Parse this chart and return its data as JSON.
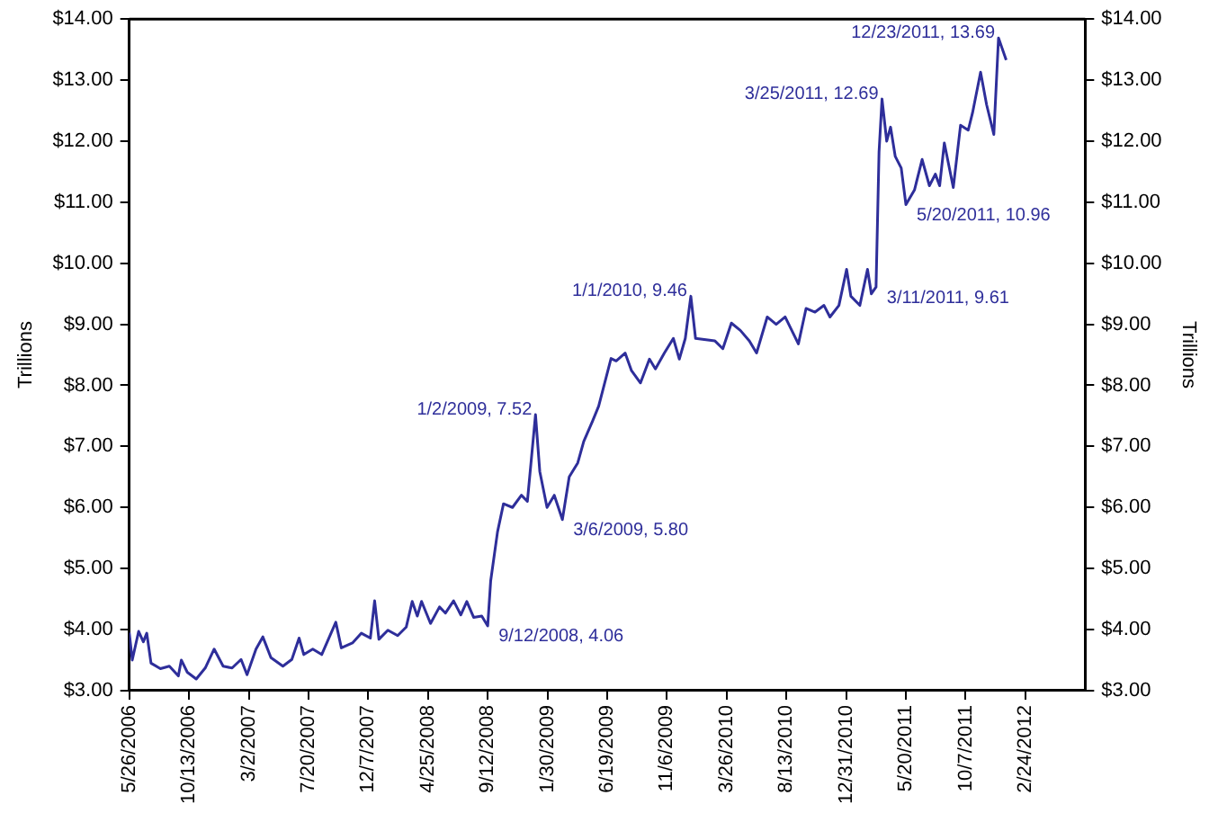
{
  "chart_data": {
    "type": "line",
    "ylabel": "Trillions",
    "y2label": "Trillions",
    "grid": false,
    "legend": false,
    "marker": "none",
    "line_style": "solid",
    "xlim": [
      "2006-05-26",
      "2012-07-13"
    ],
    "xticks": [
      {
        "value": "2006-05-26",
        "label": "5/26/2006"
      },
      {
        "value": "2006-10-13",
        "label": "10/13/2006"
      },
      {
        "value": "2007-03-02",
        "label": "3/2/2007"
      },
      {
        "value": "2007-07-20",
        "label": "7/20/2007"
      },
      {
        "value": "2007-12-07",
        "label": "12/7/2007"
      },
      {
        "value": "2008-04-25",
        "label": "4/25/2008"
      },
      {
        "value": "2008-09-12",
        "label": "9/12/2008"
      },
      {
        "value": "2009-01-30",
        "label": "1/30/2009"
      },
      {
        "value": "2009-06-19",
        "label": "6/19/2009"
      },
      {
        "value": "2009-11-06",
        "label": "11/6/2009"
      },
      {
        "value": "2010-03-26",
        "label": "3/26/2010"
      },
      {
        "value": "2010-08-13",
        "label": "8/13/2010"
      },
      {
        "value": "2010-12-31",
        "label": "12/31/2010"
      },
      {
        "value": "2011-05-20",
        "label": "5/20/2011"
      },
      {
        "value": "2011-10-07",
        "label": "10/7/2011"
      },
      {
        "value": "2012-02-24",
        "label": "2/24/2012"
      }
    ],
    "ylim": [
      3,
      14
    ],
    "yticks": [
      {
        "value": 3,
        "label": "$3.00"
      },
      {
        "value": 4,
        "label": "$4.00"
      },
      {
        "value": 5,
        "label": "$5.00"
      },
      {
        "value": 6,
        "label": "$6.00"
      },
      {
        "value": 7,
        "label": "$7.00"
      },
      {
        "value": 8,
        "label": "$8.00"
      },
      {
        "value": 9,
        "label": "$9.00"
      },
      {
        "value": 10,
        "label": "$10.00"
      },
      {
        "value": 11,
        "label": "$11.00"
      },
      {
        "value": 12,
        "label": "$12.00"
      },
      {
        "value": 13,
        "label": "$13.00"
      },
      {
        "value": 14,
        "label": "$14.00"
      }
    ],
    "y2lim": [
      3,
      14
    ],
    "y2ticks": [
      {
        "value": 3,
        "label": "$3.00"
      },
      {
        "value": 4,
        "label": "$4.00"
      },
      {
        "value": 5,
        "label": "$5.00"
      },
      {
        "value": 6,
        "label": "$6.00"
      },
      {
        "value": 7,
        "label": "$7.00"
      },
      {
        "value": 8,
        "label": "$8.00"
      },
      {
        "value": 9,
        "label": "$9.00"
      },
      {
        "value": 10,
        "label": "$10.00"
      },
      {
        "value": 11,
        "label": "$11.00"
      },
      {
        "value": 12,
        "label": "$12.00"
      },
      {
        "value": 13,
        "label": "$13.00"
      },
      {
        "value": 14,
        "label": "$14.00"
      }
    ],
    "x": [
      "2006-05-26",
      "2006-06-02",
      "2006-06-17",
      "2006-06-28",
      "2006-07-06",
      "2006-07-16",
      "2006-08-07",
      "2006-08-28",
      "2006-09-18",
      "2006-09-25",
      "2006-10-09",
      "2006-10-30",
      "2006-11-20",
      "2006-12-11",
      "2007-01-01",
      "2007-01-22",
      "2007-02-12",
      "2007-02-26",
      "2007-03-19",
      "2007-04-04",
      "2007-04-23",
      "2007-05-21",
      "2007-06-11",
      "2007-06-28",
      "2007-07-09",
      "2007-07-30",
      "2007-08-20",
      "2007-09-22",
      "2007-10-05",
      "2007-10-31",
      "2007-11-21",
      "2007-12-12",
      "2007-12-22",
      "2008-01-01",
      "2008-01-22",
      "2008-02-14",
      "2008-03-05",
      "2008-03-19",
      "2008-03-31",
      "2008-04-10",
      "2008-05-01",
      "2008-05-22",
      "2008-06-05",
      "2008-06-24",
      "2008-07-11",
      "2008-07-25",
      "2008-08-10",
      "2008-08-29",
      "2008-09-12",
      "2008-09-19",
      "2008-10-05",
      "2008-10-19",
      "2008-11-09",
      "2008-11-30",
      "2008-12-14",
      "2009-01-02",
      "2009-01-12",
      "2009-01-29",
      "2009-02-15",
      "2009-03-06",
      "2009-03-22",
      "2009-04-11",
      "2009-04-25",
      "2009-05-16",
      "2009-05-30",
      "2009-06-28",
      "2009-07-10",
      "2009-07-31",
      "2009-08-15",
      "2009-09-05",
      "2009-09-26",
      "2009-10-10",
      "2009-10-31",
      "2009-11-21",
      "2009-12-05",
      "2009-12-19",
      "2010-01-01",
      "2010-01-12",
      "2010-02-26",
      "2010-03-17",
      "2010-04-06",
      "2010-04-27",
      "2010-05-18",
      "2010-06-04",
      "2010-06-29",
      "2010-07-20",
      "2010-08-10",
      "2010-09-10",
      "2010-09-28",
      "2010-10-19",
      "2010-11-09",
      "2010-11-23",
      "2010-12-14",
      "2011-01-01",
      "2011-01-11",
      "2011-02-01",
      "2011-02-19",
      "2011-02-28",
      "2011-03-11",
      "2011-03-18",
      "2011-03-25",
      "2011-04-05",
      "2011-04-14",
      "2011-04-25",
      "2011-05-09",
      "2011-05-20",
      "2011-06-09",
      "2011-06-27",
      "2011-07-14",
      "2011-07-28",
      "2011-08-07",
      "2011-08-18",
      "2011-09-08",
      "2011-09-25",
      "2011-10-13",
      "2011-10-23",
      "2011-11-11",
      "2011-11-25",
      "2011-12-12",
      "2011-12-23",
      "2012-01-10"
    ],
    "series": [
      {
        "color": "#2e2e9a",
        "values": [
          3.95,
          3.5,
          3.97,
          3.8,
          3.94,
          3.45,
          3.36,
          3.4,
          3.24,
          3.5,
          3.3,
          3.19,
          3.37,
          3.68,
          3.4,
          3.37,
          3.51,
          3.26,
          3.68,
          3.88,
          3.54,
          3.4,
          3.51,
          3.86,
          3.59,
          3.68,
          3.59,
          4.12,
          3.7,
          3.78,
          3.94,
          3.86,
          4.47,
          3.84,
          3.99,
          3.9,
          4.04,
          4.46,
          4.22,
          4.46,
          4.1,
          4.37,
          4.27,
          4.47,
          4.24,
          4.46,
          4.2,
          4.22,
          4.06,
          4.8,
          5.6,
          6.06,
          6.0,
          6.2,
          6.1,
          7.52,
          6.59,
          6.0,
          6.2,
          5.8,
          6.5,
          6.73,
          7.08,
          7.42,
          7.66,
          8.44,
          8.4,
          8.53,
          8.24,
          8.04,
          8.43,
          8.27,
          8.53,
          8.77,
          8.43,
          8.77,
          9.46,
          8.77,
          8.73,
          8.6,
          9.02,
          8.9,
          8.73,
          8.53,
          9.12,
          9.0,
          9.12,
          8.68,
          9.26,
          9.2,
          9.31,
          9.12,
          9.31,
          9.9,
          9.46,
          9.31,
          9.9,
          9.5,
          9.61,
          11.82,
          12.69,
          12.0,
          12.23,
          11.75,
          11.56,
          10.96,
          11.2,
          11.7,
          11.27,
          11.46,
          11.27,
          11.97,
          11.24,
          12.26,
          12.18,
          12.46,
          13.13,
          12.6,
          12.11,
          13.69,
          13.33
        ]
      }
    ],
    "annotations": [
      {
        "text": "9/12/2008, 4.06",
        "x": "2008-09-12",
        "y": 4.06
      },
      {
        "text": "1/2/2009, 7.52",
        "x": "2009-01-02",
        "y": 7.52
      },
      {
        "text": "3/6/2009, 5.80",
        "x": "2009-03-06",
        "y": 5.8
      },
      {
        "text": "1/1/2010, 9.46",
        "x": "2010-01-01",
        "y": 9.46
      },
      {
        "text": "3/11/2011, 9.61",
        "x": "2011-03-11",
        "y": 9.61
      },
      {
        "text": "3/25/2011, 12.69",
        "x": "2011-03-25",
        "y": 12.69
      },
      {
        "text": "5/20/2011, 10.96",
        "x": "2011-05-20",
        "y": 10.96
      },
      {
        "text": "12/23/2011, 13.69",
        "x": "2011-12-23",
        "y": 13.69
      }
    ]
  }
}
